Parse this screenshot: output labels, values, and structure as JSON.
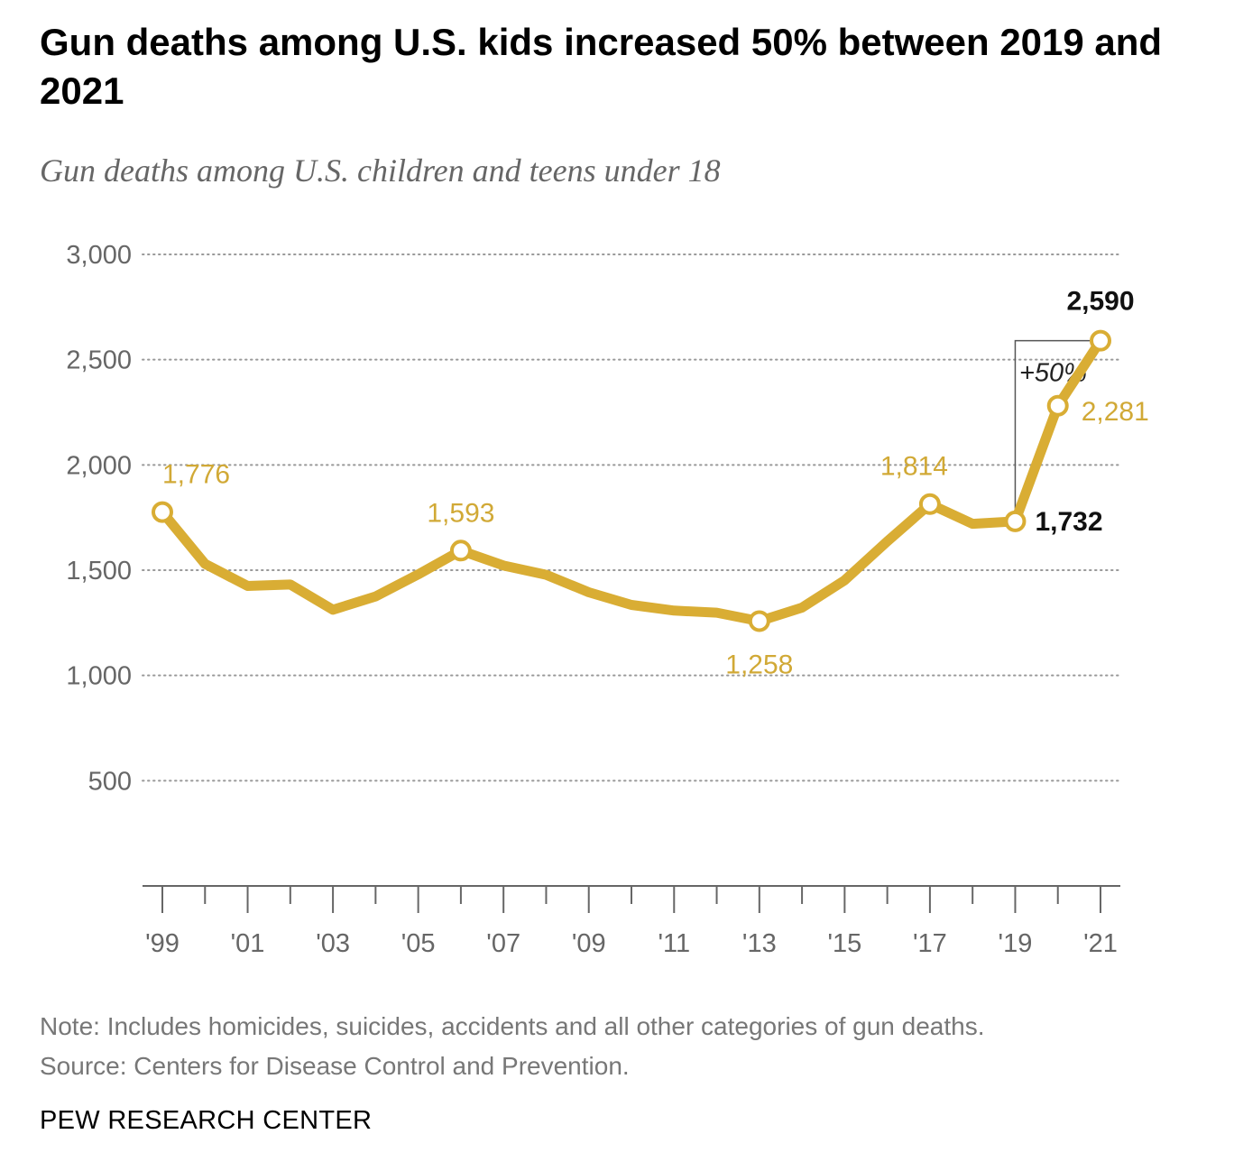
{
  "chart_data": {
    "type": "line",
    "title": "Gun deaths among U.S. kids increased 50% between 2019 and 2021",
    "subtitle": "Gun deaths among U.S. children and teens under 18",
    "x": [
      1999,
      2000,
      2001,
      2002,
      2003,
      2004,
      2005,
      2006,
      2007,
      2008,
      2009,
      2010,
      2011,
      2012,
      2013,
      2014,
      2015,
      2016,
      2017,
      2018,
      2019,
      2020,
      2021
    ],
    "series": [
      {
        "name": "Gun deaths",
        "values": [
          1776,
          1530,
          1425,
          1432,
          1312,
          1375,
          1480,
          1593,
          1522,
          1478,
          1395,
          1335,
          1308,
          1298,
          1258,
          1322,
          1452,
          1637,
          1814,
          1720,
          1732,
          2281,
          2590
        ],
        "color": "#d9ad34"
      }
    ],
    "xticks": [
      {
        "year": 1999,
        "label": "'99"
      },
      {
        "year": 2001,
        "label": "'01"
      },
      {
        "year": 2003,
        "label": "'03"
      },
      {
        "year": 2005,
        "label": "'05"
      },
      {
        "year": 2007,
        "label": "'07"
      },
      {
        "year": 2009,
        "label": "'09"
      },
      {
        "year": 2011,
        "label": "'11"
      },
      {
        "year": 2013,
        "label": "'13"
      },
      {
        "year": 2015,
        "label": "'15"
      },
      {
        "year": 2017,
        "label": "'17"
      },
      {
        "year": 2019,
        "label": "'19"
      },
      {
        "year": 2021,
        "label": "'21"
      }
    ],
    "yticks": [
      {
        "value": 500,
        "label": "500"
      },
      {
        "value": 1000,
        "label": "1,000"
      },
      {
        "value": 1500,
        "label": "1,500"
      },
      {
        "value": 2000,
        "label": "2,000"
      },
      {
        "value": 2500,
        "label": "2,500"
      },
      {
        "value": 3000,
        "label": "3,000"
      }
    ],
    "ylim": [
      0,
      3000
    ],
    "xlim": [
      1999,
      2021
    ],
    "grid": true,
    "annotations": [
      {
        "year": 1999,
        "label": "1,776",
        "style": "gold",
        "position": "above-right"
      },
      {
        "year": 2006,
        "label": "1,593",
        "style": "gold",
        "position": "above"
      },
      {
        "year": 2013,
        "label": "1,258",
        "style": "gold",
        "position": "below"
      },
      {
        "year": 2017,
        "label": "1,814",
        "style": "gold",
        "position": "above-left"
      },
      {
        "year": 2019,
        "label": "1,732",
        "style": "bold",
        "position": "right"
      },
      {
        "year": 2020,
        "label": "2,281",
        "style": "gold",
        "position": "right"
      },
      {
        "year": 2021,
        "label": "2,590",
        "style": "bold",
        "position": "above"
      }
    ],
    "change_annotation": {
      "label": "+50%",
      "from_year": 2019,
      "to_year": 2021
    },
    "accent_color": "#d9ad34",
    "text_gold": "#d1a936",
    "axis_color": "#666666",
    "grid_color": "#999999"
  },
  "note": "Note: Includes homicides, suicides, accidents and all other categories of gun deaths.",
  "source": "Source: Centers for Disease Control and Prevention.",
  "brand": "PEW RESEARCH CENTER"
}
